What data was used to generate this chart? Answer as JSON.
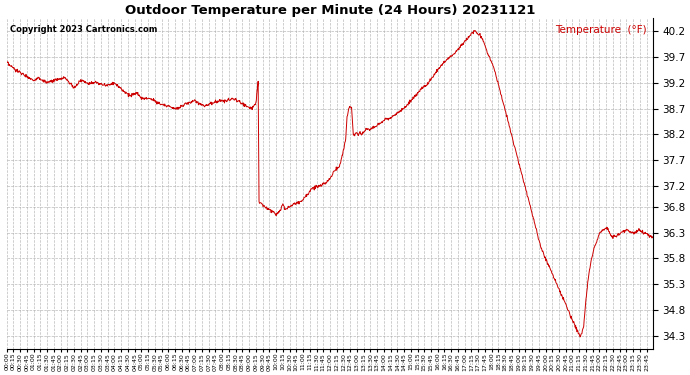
{
  "title": "Outdoor Temperature per Minute (24 Hours) 20231121",
  "copyright": "Copyright 2023 Cartronics.com",
  "legend_label": "Temperature  (°F)",
  "line_color": "#cc0000",
  "legend_color": "#cc0000",
  "bg_color": "#ffffff",
  "grid_color": "#aaaaaa",
  "title_color": "#000000",
  "copyright_color": "#000000",
  "ylim": [
    34.05,
    40.45
  ],
  "yticks": [
    34.3,
    34.8,
    35.3,
    35.8,
    36.3,
    36.8,
    37.2,
    37.7,
    38.2,
    38.7,
    39.2,
    39.7,
    40.2
  ],
  "tick_interval_minutes": 15,
  "total_minutes": 1440,
  "figsize": [
    6.9,
    3.75
  ],
  "dpi": 100,
  "keypoints": [
    [
      0,
      39.6
    ],
    [
      5,
      39.55
    ],
    [
      20,
      39.45
    ],
    [
      40,
      39.35
    ],
    [
      60,
      39.25
    ],
    [
      70,
      39.3
    ],
    [
      90,
      39.2
    ],
    [
      110,
      39.25
    ],
    [
      130,
      39.3
    ],
    [
      150,
      39.1
    ],
    [
      165,
      39.25
    ],
    [
      180,
      39.2
    ],
    [
      200,
      39.2
    ],
    [
      220,
      39.15
    ],
    [
      240,
      39.2
    ],
    [
      260,
      39.05
    ],
    [
      275,
      38.95
    ],
    [
      290,
      39.0
    ],
    [
      300,
      38.9
    ],
    [
      320,
      38.9
    ],
    [
      340,
      38.8
    ],
    [
      360,
      38.75
    ],
    [
      375,
      38.7
    ],
    [
      390,
      38.75
    ],
    [
      400,
      38.8
    ],
    [
      420,
      38.85
    ],
    [
      440,
      38.75
    ],
    [
      455,
      38.8
    ],
    [
      470,
      38.85
    ],
    [
      490,
      38.85
    ],
    [
      505,
      38.9
    ],
    [
      515,
      38.85
    ],
    [
      525,
      38.8
    ],
    [
      535,
      38.75
    ],
    [
      545,
      38.7
    ],
    [
      555,
      38.8
    ],
    [
      558,
      39.1
    ],
    [
      560,
      39.2
    ],
    [
      562,
      36.9
    ],
    [
      575,
      36.8
    ],
    [
      585,
      36.75
    ],
    [
      595,
      36.7
    ],
    [
      600,
      36.65
    ],
    [
      610,
      36.75
    ],
    [
      615,
      36.85
    ],
    [
      620,
      36.75
    ],
    [
      630,
      36.8
    ],
    [
      640,
      36.85
    ],
    [
      655,
      36.9
    ],
    [
      665,
      37.0
    ],
    [
      680,
      37.15
    ],
    [
      695,
      37.2
    ],
    [
      710,
      37.25
    ],
    [
      720,
      37.35
    ],
    [
      730,
      37.5
    ],
    [
      742,
      37.6
    ],
    [
      750,
      37.9
    ],
    [
      755,
      38.1
    ],
    [
      758,
      38.55
    ],
    [
      762,
      38.7
    ],
    [
      765,
      38.75
    ],
    [
      768,
      38.7
    ],
    [
      770,
      38.5
    ],
    [
      772,
      38.2
    ],
    [
      775,
      38.2
    ],
    [
      778,
      38.25
    ],
    [
      781,
      38.2
    ],
    [
      784,
      38.2
    ],
    [
      787,
      38.25
    ],
    [
      790,
      38.2
    ],
    [
      795,
      38.25
    ],
    [
      800,
      38.3
    ],
    [
      810,
      38.3
    ],
    [
      820,
      38.35
    ],
    [
      830,
      38.4
    ],
    [
      845,
      38.5
    ],
    [
      860,
      38.55
    ],
    [
      875,
      38.65
    ],
    [
      890,
      38.75
    ],
    [
      905,
      38.9
    ],
    [
      920,
      39.05
    ],
    [
      940,
      39.2
    ],
    [
      960,
      39.45
    ],
    [
      980,
      39.65
    ],
    [
      995,
      39.75
    ],
    [
      1005,
      39.85
    ],
    [
      1015,
      39.95
    ],
    [
      1025,
      40.05
    ],
    [
      1035,
      40.15
    ],
    [
      1042,
      40.2
    ],
    [
      1050,
      40.15
    ],
    [
      1060,
      40.05
    ],
    [
      1070,
      39.8
    ],
    [
      1085,
      39.5
    ],
    [
      1100,
      39.0
    ],
    [
      1115,
      38.5
    ],
    [
      1130,
      38.0
    ],
    [
      1145,
      37.5
    ],
    [
      1160,
      37.0
    ],
    [
      1175,
      36.5
    ],
    [
      1190,
      36.0
    ],
    [
      1205,
      35.7
    ],
    [
      1220,
      35.4
    ],
    [
      1235,
      35.1
    ],
    [
      1248,
      34.85
    ],
    [
      1260,
      34.6
    ],
    [
      1268,
      34.45
    ],
    [
      1273,
      34.35
    ],
    [
      1277,
      34.3
    ],
    [
      1281,
      34.35
    ],
    [
      1285,
      34.5
    ],
    [
      1290,
      35.0
    ],
    [
      1295,
      35.4
    ],
    [
      1300,
      35.7
    ],
    [
      1308,
      36.0
    ],
    [
      1315,
      36.15
    ],
    [
      1320,
      36.3
    ],
    [
      1330,
      36.35
    ],
    [
      1335,
      36.4
    ],
    [
      1340,
      36.35
    ],
    [
      1345,
      36.25
    ],
    [
      1350,
      36.2
    ],
    [
      1360,
      36.25
    ],
    [
      1370,
      36.3
    ],
    [
      1380,
      36.35
    ],
    [
      1390,
      36.3
    ],
    [
      1400,
      36.3
    ],
    [
      1410,
      36.35
    ],
    [
      1420,
      36.3
    ],
    [
      1430,
      36.25
    ],
    [
      1439,
      36.2
    ]
  ]
}
